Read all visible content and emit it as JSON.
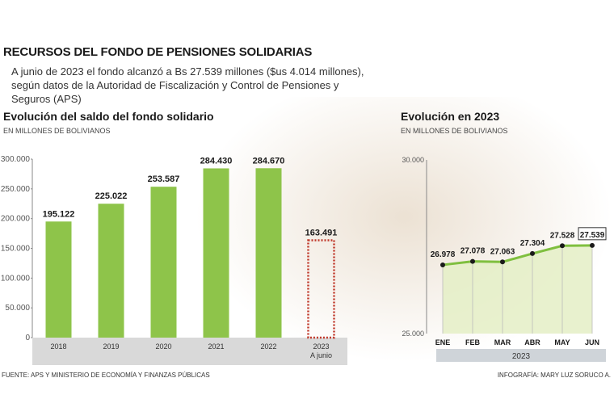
{
  "header": {
    "title": "RECURSOS DEL FONDO DE PENSIONES SOLIDARIAS",
    "subtitle": "A junio de 2023 el fondo alcanzó a Bs 27.539 millones ($us 4.014 millones), según datos de la Autoridad de Fiscalización y Control de Pensiones y Seguros (APS)"
  },
  "left_section": {
    "title": "Evolución del saldo del fondo solidario",
    "unit": "EN MILLONES DE BOLIVIANOS"
  },
  "right_section": {
    "title": "Evolución en 2023",
    "unit": "EN MILLONES DE BOLIVIANOS"
  },
  "footer": {
    "source": "FUENTE: APS Y MINISTERIO DE ECONOMÍA Y FINANZAS PÚBLICAS",
    "credit": "INFOGRAFÍA: MARY LUZ SORUCO A."
  },
  "colors": {
    "bar_green": "#8ec44a",
    "line_green": "#7fbf3f",
    "area_green": "#e4efc6",
    "dotted_red": "#c0392b",
    "axis_band": "#d9d9d9",
    "year_band": "#cfd4d9"
  },
  "chart_data": [
    {
      "type": "bar",
      "title": "Evolución del saldo del fondo solidario",
      "ylabel": "EN MILLONES DE BOLIVIANOS",
      "ylim": [
        0,
        300000
      ],
      "yticks": [
        "0",
        "50.000",
        "100.000",
        "150.000",
        "200.000",
        "250.000",
        "300.000"
      ],
      "ytick_values": [
        0,
        50000,
        100000,
        150000,
        200000,
        250000,
        300000
      ],
      "categories": [
        "2018",
        "2019",
        "2020",
        "2021",
        "2022",
        "2023"
      ],
      "category_sublabels": [
        "",
        "",
        "",
        "",
        "",
        "A junio"
      ],
      "values": [
        195122,
        225022,
        253587,
        284430,
        284670,
        163491
      ],
      "value_labels": [
        "195.122",
        "225.022",
        "253.587",
        "284.430",
        "284.670",
        "163.491"
      ],
      "partial_last": true,
      "grid": false
    },
    {
      "type": "area",
      "title": "Evolución en 2023",
      "ylabel": "EN MILLONES DE BOLIVIANOS",
      "ylim": [
        25000,
        30000
      ],
      "yticks": [
        "25.000",
        "30.000"
      ],
      "ytick_values": [
        25000,
        30000
      ],
      "categories": [
        "ENE",
        "FEB",
        "MAR",
        "ABR",
        "MAY",
        "JUN"
      ],
      "values": [
        26978,
        27078,
        27063,
        27304,
        27528,
        27539
      ],
      "value_labels": [
        "26.978",
        "27.078",
        "27.063",
        "27.304",
        "27.528",
        "27.539"
      ],
      "group_label": "2023",
      "grid": false
    }
  ]
}
